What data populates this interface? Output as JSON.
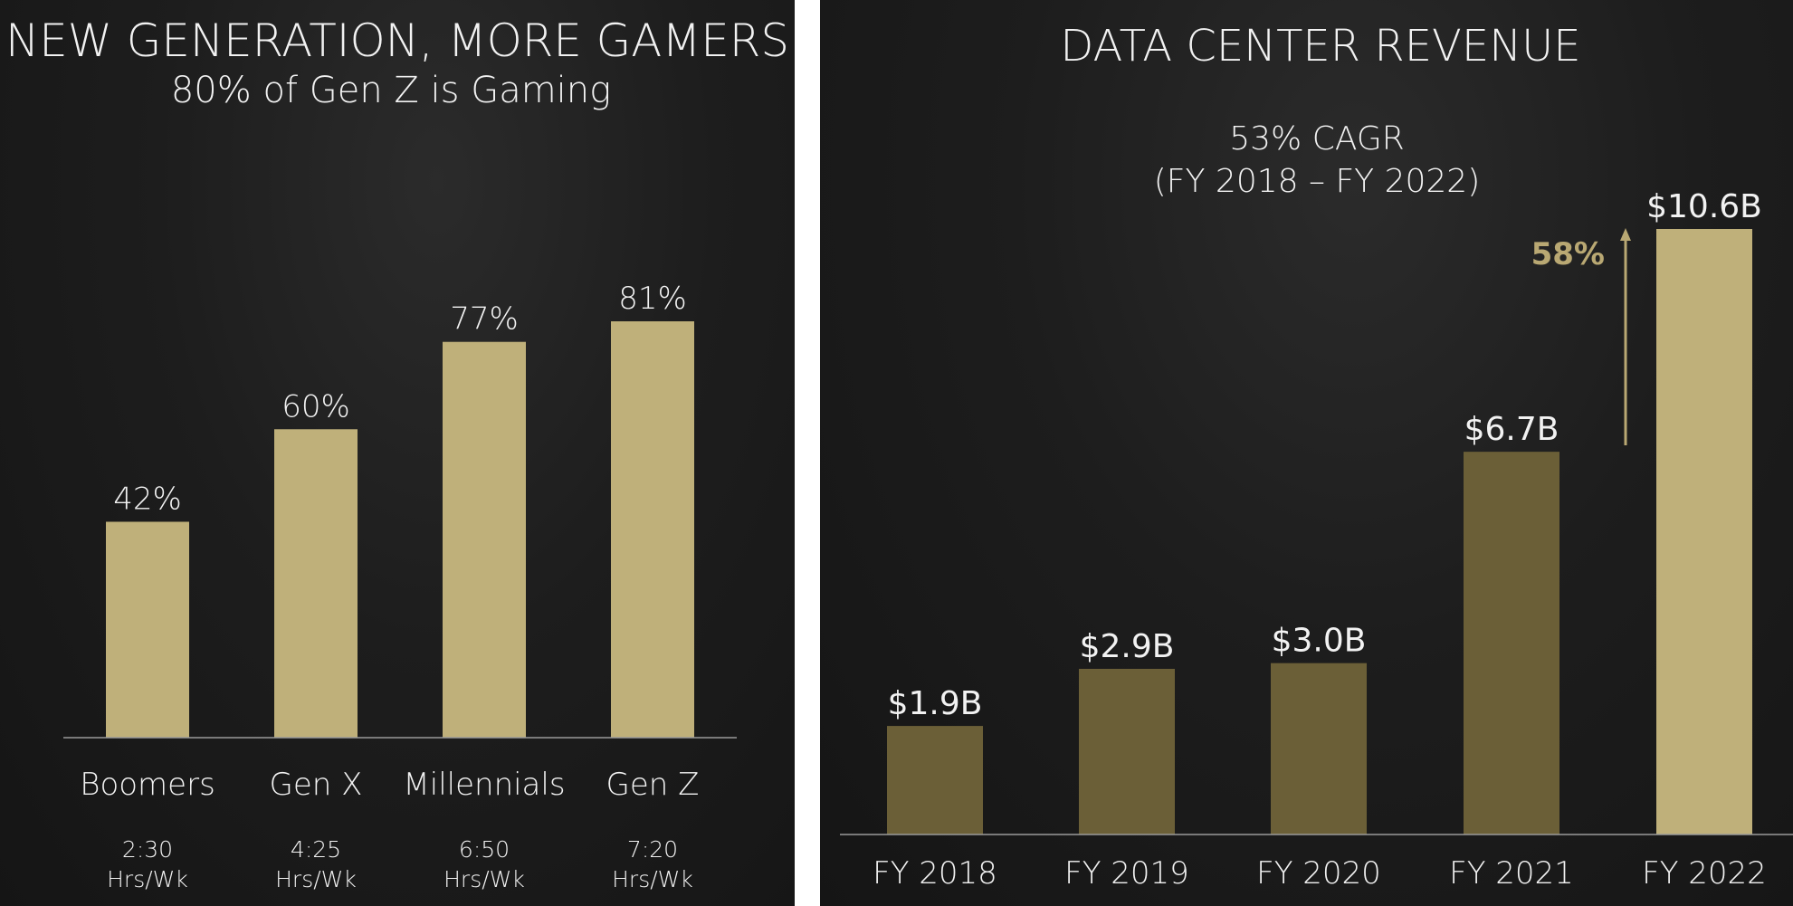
{
  "colors": {
    "light_gold": "#bfb07a",
    "dark_gold": "#6b5f37",
    "text": "#f2f2f2",
    "accent_text": "#b9a873",
    "axis": "#9a9a9a"
  },
  "left": {
    "title": "NEW GENERATION, MORE GAMERS",
    "subtitle": "80% of Gen Z is Gaming"
  },
  "right": {
    "title": "DATA CENTER REVENUE",
    "cagr_line1": "53% CAGR",
    "cagr_line2": "(FY 2018 – FY 2022)",
    "growth_label": "58%"
  },
  "chart_data": [
    {
      "type": "bar",
      "title": "NEW GENERATION, MORE GAMERS",
      "subtitle": "80% of Gen Z is Gaming",
      "categories": [
        "Boomers",
        "Gen X",
        "Millennials",
        "Gen Z"
      ],
      "values": [
        42,
        60,
        77,
        81
      ],
      "value_labels": [
        "42%",
        "60%",
        "77%",
        "81%"
      ],
      "secondary_labels": [
        [
          "2:30",
          "Hrs/Wk"
        ],
        [
          "4:25",
          "Hrs/Wk"
        ],
        [
          "6:50",
          "Hrs/Wk"
        ],
        [
          "7:20",
          "Hrs/Wk"
        ]
      ],
      "ylim": [
        0,
        100
      ],
      "grid": false
    },
    {
      "type": "bar",
      "title": "DATA CENTER REVENUE",
      "annotation": "53% CAGR (FY 2018 – FY 2022)",
      "categories": [
        "FY 2018",
        "FY 2019",
        "FY 2020",
        "FY 2021",
        "FY 2022"
      ],
      "values": [
        1.9,
        2.9,
        3.0,
        6.7,
        10.6
      ],
      "value_labels": [
        "$1.9B",
        "$2.9B",
        "$3.0B",
        "$6.7B",
        "$10.6B"
      ],
      "highlight_index": 4,
      "growth_annotation": "58%",
      "ylim": [
        0,
        12
      ],
      "grid": false
    }
  ]
}
